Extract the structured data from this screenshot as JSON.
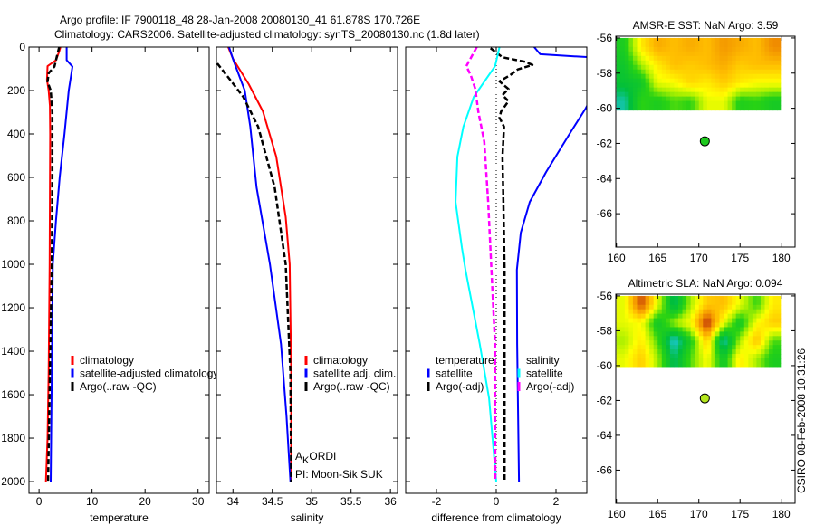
{
  "figure": {
    "title_lines": [
      "Argo profile: IF 7900118_48 28-Jan-2008 20080130_41 61.878S 170.726E",
      "Climatology: CARS2006. Satellite-adjusted climatology: synTS_20080130.nc (1.8d later)"
    ],
    "footer": "CSIRO 08-Feb-2008 10:31:26",
    "annotation": {
      "parts": [
        "A",
        "K",
        "ORDI"
      ],
      "pi": "PI: Moon-Sik SUK"
    }
  },
  "chart_data": [
    {
      "type": "line",
      "id": "temperature",
      "xlabel": "temperature",
      "ylabel": "",
      "xlim": [
        -1.9,
        32.1
      ],
      "ylim": [
        0,
        2054
      ],
      "y_reversed": true,
      "xticks": [
        0,
        10,
        20,
        30
      ],
      "yticks": [
        0,
        200,
        400,
        600,
        800,
        1000,
        1200,
        1400,
        1600,
        1800,
        2000
      ],
      "show_ytick_labels": true,
      "series": [
        {
          "name": "climatology",
          "color": "#ff0000",
          "dash": "solid",
          "depth": [
            0,
            20,
            61,
            88,
            150,
            200,
            270,
            400,
            700,
            1000,
            1500,
            1800,
            2000
          ],
          "values": [
            4.05,
            3.8,
            3.2,
            1.6,
            1.5,
            1.8,
            2.05,
            2.1,
            2.05,
            2.0,
            1.8,
            1.6,
            1.3
          ]
        },
        {
          "name": "satellite-adjusted climatology",
          "color": "#0000ff",
          "dash": "solid",
          "depth": [
            0,
            60,
            90,
            200,
            400,
            600,
            800,
            1000,
            1500,
            2000
          ],
          "values": [
            5.2,
            5.2,
            6.3,
            5.6,
            4.8,
            3.9,
            3.2,
            2.6,
            2.4,
            2.2
          ]
        },
        {
          "name": "Argo(..raw -QC)",
          "color": "#000000",
          "dash": "dashed",
          "depth": [
            0,
            40,
            90,
            120,
            160,
            200,
            300,
            600,
            1000,
            1500,
            2000
          ],
          "values": [
            3.8,
            3.4,
            2.9,
            1.8,
            1.6,
            2.2,
            2.5,
            2.5,
            2.4,
            2.05,
            1.7
          ]
        }
      ],
      "legend": {
        "columns": [
          {
            "header": null,
            "entries": [
              {
                "label": "climatology",
                "color": "#ff0000"
              },
              {
                "label": "satellite-adjusted climatology",
                "color": "#0000ff"
              },
              {
                "label": "Argo(..raw -QC)",
                "color": "#000000"
              }
            ]
          }
        ]
      }
    },
    {
      "type": "line",
      "id": "salinity",
      "xlabel": "salinity",
      "ylabel": "",
      "xlim": [
        33.79,
        36.09
      ],
      "ylim": [
        0,
        2054
      ],
      "y_reversed": true,
      "xticks": [
        34,
        34.5,
        35,
        35.5,
        36
      ],
      "yticks": [
        0,
        200,
        400,
        600,
        800,
        1000,
        1200,
        1400,
        1600,
        1800,
        2000
      ],
      "show_ytick_labels": false,
      "series": [
        {
          "name": "climatology",
          "color": "#ff0000",
          "dash": "solid",
          "depth": [
            0,
            54,
            171,
            296,
            505,
            783,
            1000,
            1500,
            2000
          ],
          "values": [
            33.94,
            34.0,
            34.2,
            34.38,
            34.55,
            34.67,
            34.72,
            34.74,
            34.74
          ]
        },
        {
          "name": "satellite adj. clim.",
          "color": "#0000ff",
          "dash": "solid",
          "depth": [
            0,
            65,
            200,
            367,
            645,
            1000,
            1367,
            1700,
            2000
          ],
          "values": [
            33.95,
            34.01,
            34.15,
            34.22,
            34.3,
            34.47,
            34.61,
            34.68,
            34.73
          ]
        },
        {
          "name": "Argo(..raw -QC)",
          "color": "#000000",
          "dash": "dashed",
          "depth": [
            75,
            158,
            229,
            367,
            645,
            1000,
            1500,
            2000
          ],
          "values": [
            33.8,
            33.98,
            34.13,
            34.32,
            34.53,
            34.67,
            34.73,
            34.74
          ]
        }
      ],
      "legend": {
        "columns": [
          {
            "header": null,
            "entries": [
              {
                "label": "climatology",
                "color": "#ff0000"
              },
              {
                "label": "satellite adj. clim.",
                "color": "#0000ff"
              },
              {
                "label": "Argo(..raw -QC)",
                "color": "#000000"
              }
            ]
          }
        ]
      }
    },
    {
      "type": "line",
      "id": "difference",
      "xlabel": "difference from climatology",
      "ylabel": "",
      "xlim": [
        -3.03,
        3.03
      ],
      "ylim": [
        0,
        2054
      ],
      "y_reversed": true,
      "xticks": [
        -2,
        0,
        2
      ],
      "yticks": [
        0,
        200,
        400,
        600,
        800,
        1000,
        1200,
        1400,
        1600,
        1800,
        2000
      ],
      "show_ytick_labels": false,
      "reference_line": 0,
      "series": [
        {
          "name": "temperature satellite",
          "color": "#0000ff",
          "dash": "solid",
          "depth": [
            0,
            33,
            50,
            150,
            283,
            394,
            575,
            713,
            854,
            1025,
            1367,
            2000
          ],
          "values": [
            1.27,
            1.47,
            3.5,
            3.5,
            2.99,
            2.48,
            1.67,
            1.12,
            0.82,
            0.69,
            0.7,
            0.76
          ]
        },
        {
          "name": "temperature Argo(-adj)",
          "color": "#000000",
          "dash": "dashed",
          "depth": [
            5,
            47,
            68,
            82,
            103,
            130,
            158,
            193,
            221,
            249,
            297,
            325,
            367,
            505,
            713,
            1025,
            2000
          ],
          "values": [
            -0.19,
            0.21,
            0.97,
            1.21,
            0.72,
            0.46,
            0.11,
            0.41,
            0.21,
            0.41,
            0.16,
            0.11,
            0.26,
            0.21,
            0.24,
            0.28,
            0.28
          ]
        },
        {
          "name": "salinity satellite",
          "color": "#00ffff",
          "dash": "solid",
          "depth": [
            0,
            88,
            229,
            367,
            505,
            713,
            921,
            1025,
            1367,
            1617,
            2000
          ],
          "values": [
            0.11,
            -0.04,
            -0.75,
            -1.1,
            -1.3,
            -1.36,
            -1.15,
            -1.03,
            -0.55,
            -0.24,
            0.0
          ]
        },
        {
          "name": "salinity Argo(-adj)",
          "color": "#ff00ff",
          "dash": "dashed",
          "depth": [
            0,
            88,
            130,
            193,
            297,
            436,
            713,
            1025,
            1367,
            1617,
            2000
          ],
          "values": [
            -0.65,
            -1.0,
            -0.85,
            -0.7,
            -0.6,
            -0.4,
            -0.27,
            -0.16,
            -0.04,
            -0.04,
            -0.03
          ]
        }
      ],
      "legend": {
        "columns": [
          {
            "header": "temperature",
            "entries": [
              {
                "label": "satellite",
                "color": "#0000ff"
              },
              {
                "label": "Argo(-adj)",
                "color": "#000000"
              }
            ]
          },
          {
            "header": "salinity",
            "entries": [
              {
                "label": "satellite",
                "color": "#00ffff"
              },
              {
                "label": "Argo(-adj)",
                "color": "#ff00ff"
              }
            ]
          }
        ]
      }
    },
    {
      "type": "heatmap",
      "id": "sst-map",
      "title": "AMSR-E SST: NaN Argo: 3.59",
      "xlim": [
        159.92,
        181.68
      ],
      "ylim": [
        -67.9,
        -55.9
      ],
      "xticks": [
        160,
        165,
        170,
        175,
        180
      ],
      "yticks": [
        -56,
        -58,
        -60,
        -62,
        -64,
        -66
      ],
      "data_lon_range": [
        160,
        180
      ],
      "data_lat_range": [
        -56,
        -60.1
      ],
      "colormap_index_grid": [
        [
          0.45,
          0.65,
          0.75,
          0.72,
          0.75,
          0.72,
          0.78,
          0.75,
          0.72,
          0.8
        ],
        [
          0.42,
          0.55,
          0.65,
          0.72,
          0.7,
          0.72,
          0.75,
          0.7,
          0.72,
          0.72
        ],
        [
          0.4,
          0.42,
          0.6,
          0.62,
          0.68,
          0.65,
          0.7,
          0.65,
          0.62,
          0.62
        ],
        [
          0.32,
          0.48,
          0.45,
          0.5,
          0.48,
          0.6,
          0.6,
          0.46,
          0.48,
          0.44
        ]
      ],
      "argo_point": {
        "lon": 170.726,
        "lat": -61.878,
        "color": "#1ec81e"
      }
    },
    {
      "type": "heatmap",
      "id": "sla-map",
      "title": "Altimetric SLA: NaN Argo: 0.094",
      "xlim": [
        159.92,
        181.68
      ],
      "ylim": [
        -67.9,
        -55.9
      ],
      "xticks": [
        160,
        165,
        170,
        175,
        180
      ],
      "yticks": [
        -56,
        -58,
        -60,
        -62,
        -64,
        -66
      ],
      "data_lon_range": [
        160,
        180
      ],
      "data_lat_range": [
        -56,
        -60.1
      ],
      "colormap_index_grid": [
        [
          0.6,
          0.88,
          0.6,
          0.35,
          0.55,
          0.7,
          0.72,
          0.6,
          0.48,
          0.65
        ],
        [
          0.6,
          0.62,
          0.42,
          0.55,
          0.62,
          0.92,
          0.6,
          0.42,
          0.62,
          0.7
        ],
        [
          0.55,
          0.65,
          0.5,
          0.28,
          0.45,
          0.7,
          0.3,
          0.55,
          0.72,
          0.5
        ],
        [
          0.6,
          0.7,
          0.55,
          0.35,
          0.5,
          0.62,
          0.42,
          0.65,
          0.55,
          0.45
        ]
      ],
      "argo_point": {
        "lon": 170.726,
        "lat": -61.878,
        "color": "#b4e61e"
      }
    }
  ]
}
